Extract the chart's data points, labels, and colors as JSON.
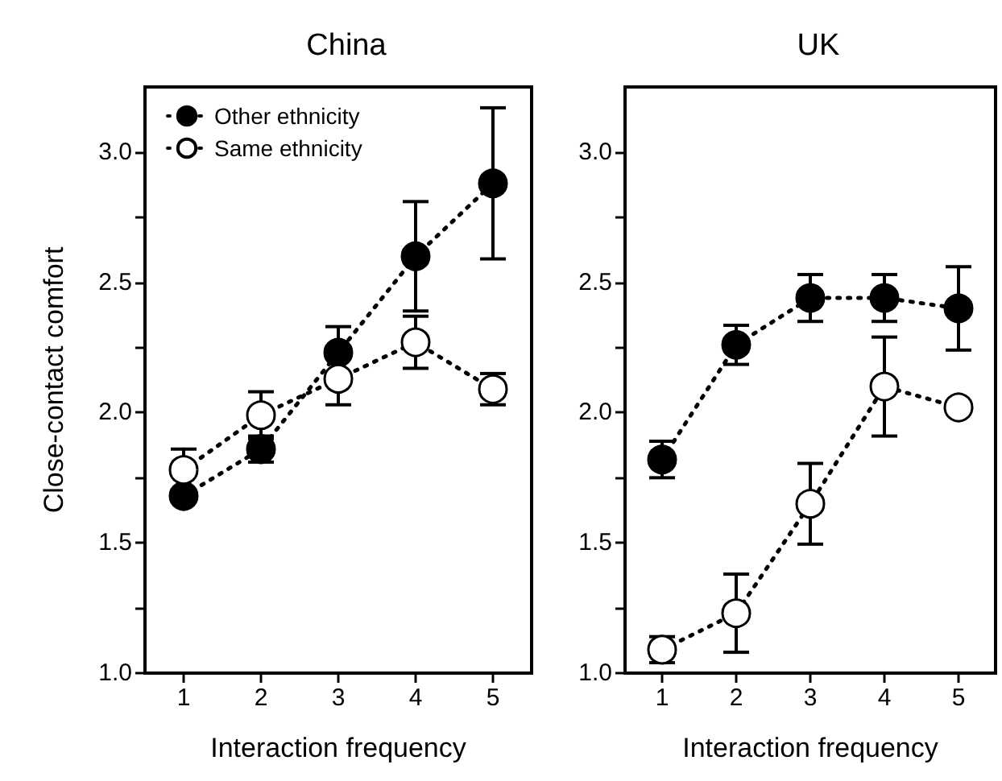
{
  "chart_data": [
    {
      "type": "line",
      "title": "China",
      "xlabel": "Interaction frequency",
      "ylabel": "Close-contact comfort",
      "x": [
        1,
        2,
        3,
        4,
        5
      ],
      "series": [
        {
          "name": "Other ethnicity",
          "color": "#000000",
          "values": [
            1.68,
            1.86,
            2.23,
            2.6,
            2.88
          ],
          "errors": [
            null,
            0.05,
            0.1,
            0.21,
            0.29
          ]
        },
        {
          "name": "Same ethnicity",
          "color": "#ffffff",
          "values": [
            1.78,
            1.99,
            2.13,
            2.27,
            2.09
          ],
          "errors": [
            0.08,
            0.09,
            0.1,
            0.1,
            0.06
          ]
        }
      ],
      "xlim": [
        0.5,
        5.5
      ],
      "xticks": [
        1,
        2,
        3,
        4,
        5
      ],
      "ylim": [
        1,
        3.25
      ],
      "yticks": [
        {
          "value": 1,
          "label": "1.0"
        },
        {
          "value": 1.25,
          "label": null
        },
        {
          "value": 1.5,
          "label": "1.5"
        },
        {
          "value": 1.75,
          "label": null
        },
        {
          "value": 2,
          "label": "2.0"
        },
        {
          "value": 2.25,
          "label": null
        },
        {
          "value": 2.5,
          "label": "2.5"
        },
        {
          "value": 2.75,
          "label": null
        },
        {
          "value": 3,
          "label": "3.0"
        }
      ],
      "marker": "circle",
      "line_style": "dotted",
      "grid": false,
      "legend": "top left"
    },
    {
      "type": "line",
      "title": "UK",
      "xlabel": "Interaction frequency",
      "x": [
        1,
        2,
        3,
        4,
        5
      ],
      "series": [
        {
          "color": "#000000",
          "values": [
            1.82,
            2.26,
            2.44,
            2.44,
            2.4
          ],
          "errors": [
            0.07,
            0.075,
            0.09,
            0.09,
            0.16
          ]
        },
        {
          "color": "#ffffff",
          "values": [
            1.09,
            1.23,
            1.65,
            2.1,
            2.02
          ],
          "errors": [
            0.05,
            0.15,
            0.155,
            0.19,
            null
          ]
        }
      ],
      "xlim": [
        0.5,
        5.5
      ],
      "xticks": [
        1,
        2,
        3,
        4,
        5
      ],
      "ylim": [
        1,
        3.25
      ],
      "yticks": [
        {
          "value": 1,
          "label": "1.0"
        },
        {
          "value": 1.25,
          "label": null
        },
        {
          "value": 1.5,
          "label": "1.5"
        },
        {
          "value": 1.75,
          "label": null
        },
        {
          "value": 2,
          "label": "2.0"
        },
        {
          "value": 2.25,
          "label": null
        },
        {
          "value": 2.5,
          "label": "2.5"
        },
        {
          "value": 2.75,
          "label": null
        },
        {
          "value": 3,
          "label": "3.0"
        }
      ],
      "marker": "circle",
      "line_style": "dotted",
      "grid": false,
      "legend": false
    }
  ]
}
